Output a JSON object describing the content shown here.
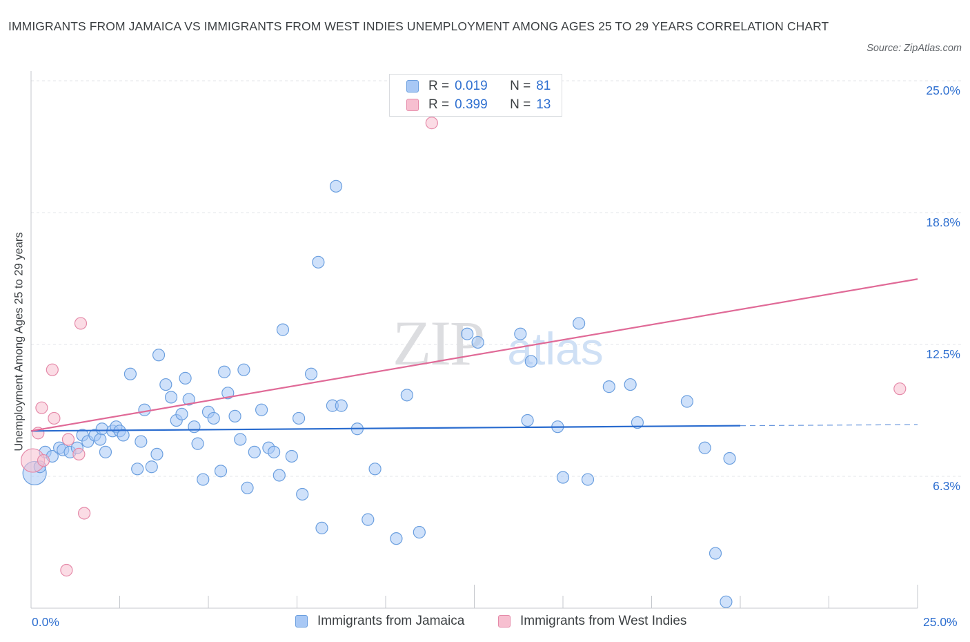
{
  "title": "IMMIGRANTS FROM JAMAICA VS IMMIGRANTS FROM WEST INDIES UNEMPLOYMENT AMONG AGES 25 TO 29 YEARS CORRELATION CHART",
  "source": "Source: ZipAtlas.com",
  "watermark": {
    "zip": "ZIP",
    "atlas": "atlas"
  },
  "legend_top": {
    "r_label": "R =",
    "n_label": "N =",
    "rows": [
      {
        "series": "Immigrants from Jamaica",
        "r": "0.019",
        "n": "81"
      },
      {
        "series": "Immigrants from West Indies",
        "r": "0.399",
        "n": "13"
      }
    ]
  },
  "colors": {
    "jamaica_fill": "#a8c8f5",
    "jamaica_stroke": "#6b9fdf",
    "jamaica_line": "#2a6ccf",
    "westindies_fill": "#f7bfd0",
    "westindies_stroke": "#e58aa9",
    "westindies_line": "#e06a97",
    "tick_text": "#2e6fd0",
    "grid": "#e3e5e8"
  },
  "chart_data": {
    "type": "scatter",
    "title": "IMMIGRANTS FROM JAMAICA VS IMMIGRANTS FROM WEST INDIES UNEMPLOYMENT AMONG AGES 25 TO 29 YEARS CORRELATION CHART",
    "xlabel": "",
    "ylabel": "Unemployment Among Ages 25 to 29 years",
    "xlim": [
      0,
      25
    ],
    "ylim": [
      0,
      25
    ],
    "x_tick_labels": [
      "0.0%",
      "25.0%"
    ],
    "y_ticks": [
      {
        "value": 25.0,
        "label": "25.0%"
      },
      {
        "value": 18.75,
        "label": "18.8%"
      },
      {
        "value": 12.5,
        "label": "12.5%"
      },
      {
        "value": 6.25,
        "label": "6.3%"
      }
    ],
    "legend": [
      "Immigrants from Jamaica",
      "Immigrants from West Indies"
    ],
    "legend_position": "top-center",
    "series": [
      {
        "name": "Immigrants from Jamaica",
        "trend": {
          "x0": 0.0,
          "y0": 8.4,
          "x1": 20.0,
          "y1": 8.65,
          "dash_to_x": 25.0,
          "dash_to_y": 8.7
        },
        "points": [
          {
            "x": 0.1,
            "y": 6.4,
            "size": "xl"
          },
          {
            "x": 0.25,
            "y": 6.7
          },
          {
            "x": 0.4,
            "y": 7.4
          },
          {
            "x": 0.6,
            "y": 7.2
          },
          {
            "x": 0.8,
            "y": 7.6
          },
          {
            "x": 0.9,
            "y": 7.5
          },
          {
            "x": 1.1,
            "y": 7.4
          },
          {
            "x": 1.3,
            "y": 7.6
          },
          {
            "x": 1.45,
            "y": 8.2
          },
          {
            "x": 1.6,
            "y": 7.9
          },
          {
            "x": 1.8,
            "y": 8.2
          },
          {
            "x": 1.95,
            "y": 8.0
          },
          {
            "x": 2.0,
            "y": 8.5
          },
          {
            "x": 2.1,
            "y": 7.4
          },
          {
            "x": 2.3,
            "y": 8.4
          },
          {
            "x": 2.4,
            "y": 8.6
          },
          {
            "x": 2.5,
            "y": 8.4
          },
          {
            "x": 2.6,
            "y": 8.2
          },
          {
            "x": 2.8,
            "y": 11.1
          },
          {
            "x": 3.0,
            "y": 6.6
          },
          {
            "x": 3.1,
            "y": 7.9
          },
          {
            "x": 3.2,
            "y": 9.4
          },
          {
            "x": 3.4,
            "y": 6.7
          },
          {
            "x": 3.55,
            "y": 7.3
          },
          {
            "x": 3.6,
            "y": 12.0
          },
          {
            "x": 3.8,
            "y": 10.6
          },
          {
            "x": 3.95,
            "y": 10.0
          },
          {
            "x": 4.1,
            "y": 8.9
          },
          {
            "x": 4.25,
            "y": 9.2
          },
          {
            "x": 4.35,
            "y": 10.9
          },
          {
            "x": 4.45,
            "y": 9.9
          },
          {
            "x": 4.6,
            "y": 8.6
          },
          {
            "x": 4.7,
            "y": 7.8
          },
          {
            "x": 4.85,
            "y": 6.1
          },
          {
            "x": 5.0,
            "y": 9.3
          },
          {
            "x": 5.15,
            "y": 9.0
          },
          {
            "x": 5.35,
            "y": 6.5
          },
          {
            "x": 5.45,
            "y": 11.2
          },
          {
            "x": 5.55,
            "y": 10.2
          },
          {
            "x": 5.75,
            "y": 9.1
          },
          {
            "x": 5.9,
            "y": 8.0
          },
          {
            "x": 6.0,
            "y": 11.3
          },
          {
            "x": 6.1,
            "y": 5.7
          },
          {
            "x": 6.3,
            "y": 7.4
          },
          {
            "x": 6.5,
            "y": 9.4
          },
          {
            "x": 6.7,
            "y": 7.6
          },
          {
            "x": 6.85,
            "y": 7.4
          },
          {
            "x": 7.0,
            "y": 6.3
          },
          {
            "x": 7.1,
            "y": 13.2
          },
          {
            "x": 7.35,
            "y": 7.2
          },
          {
            "x": 7.55,
            "y": 9.0
          },
          {
            "x": 7.65,
            "y": 5.4
          },
          {
            "x": 7.9,
            "y": 11.1
          },
          {
            "x": 8.1,
            "y": 16.4
          },
          {
            "x": 8.2,
            "y": 3.8
          },
          {
            "x": 8.5,
            "y": 9.6
          },
          {
            "x": 8.6,
            "y": 20.0
          },
          {
            "x": 8.75,
            "y": 9.6
          },
          {
            "x": 9.2,
            "y": 8.5
          },
          {
            "x": 9.5,
            "y": 4.2
          },
          {
            "x": 9.7,
            "y": 6.6
          },
          {
            "x": 10.3,
            "y": 3.3
          },
          {
            "x": 10.6,
            "y": 10.1
          },
          {
            "x": 10.95,
            "y": 3.6
          },
          {
            "x": 12.3,
            "y": 13.0
          },
          {
            "x": 12.6,
            "y": 12.6
          },
          {
            "x": 13.8,
            "y": 13.0
          },
          {
            "x": 14.0,
            "y": 8.9
          },
          {
            "x": 14.1,
            "y": 11.7
          },
          {
            "x": 14.85,
            "y": 8.6
          },
          {
            "x": 15.0,
            "y": 6.2
          },
          {
            "x": 15.45,
            "y": 13.5
          },
          {
            "x": 15.7,
            "y": 6.1
          },
          {
            "x": 16.3,
            "y": 10.5
          },
          {
            "x": 16.9,
            "y": 10.6
          },
          {
            "x": 17.1,
            "y": 8.8
          },
          {
            "x": 18.5,
            "y": 9.8
          },
          {
            "x": 19.0,
            "y": 7.6
          },
          {
            "x": 19.3,
            "y": 2.6
          },
          {
            "x": 19.6,
            "y": 0.3
          },
          {
            "x": 19.7,
            "y": 7.1
          }
        ]
      },
      {
        "name": "Immigrants from West Indies",
        "trend": {
          "x0": 0.0,
          "y0": 8.4,
          "x1": 25.0,
          "y1": 15.6
        },
        "points": [
          {
            "x": 0.05,
            "y": 7.0,
            "size": "xl"
          },
          {
            "x": 0.2,
            "y": 8.3
          },
          {
            "x": 0.35,
            "y": 7.0
          },
          {
            "x": 0.3,
            "y": 9.5
          },
          {
            "x": 0.6,
            "y": 11.3
          },
          {
            "x": 0.65,
            "y": 9.0
          },
          {
            "x": 1.0,
            "y": 1.8
          },
          {
            "x": 1.05,
            "y": 8.0
          },
          {
            "x": 1.35,
            "y": 7.3
          },
          {
            "x": 1.4,
            "y": 13.5
          },
          {
            "x": 1.5,
            "y": 4.5
          },
          {
            "x": 11.3,
            "y": 23.0
          },
          {
            "x": 24.5,
            "y": 10.4
          }
        ]
      }
    ]
  }
}
